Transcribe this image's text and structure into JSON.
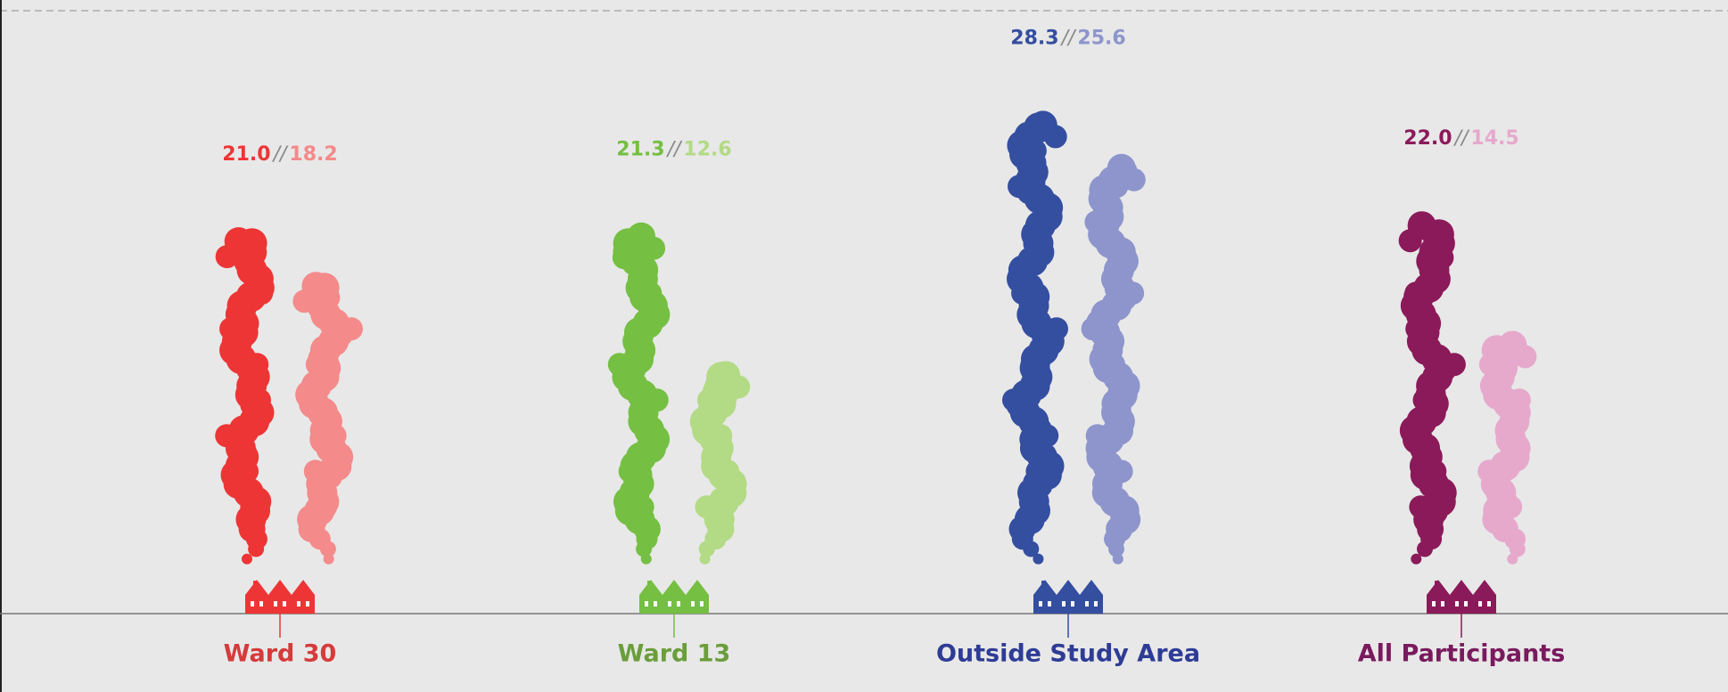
{
  "chart_data": {
    "type": "bar",
    "categories": [
      "Ward 30",
      "Ward 13",
      "Outside Study Area",
      "All Participants"
    ],
    "category_colors": [
      "#d63a3a",
      "#6a9e3a",
      "#2e3c96",
      "#7a1a5e"
    ],
    "separator": "//",
    "series": [
      {
        "colors": [
          "#ee3535",
          "#75bf43",
          "#344ea0",
          "#8b1a5a"
        ],
        "values": [
          21.0,
          21.3,
          28.3,
          22.0
        ],
        "value_labels": [
          "21.0",
          "21.3",
          "28.3",
          "22.0"
        ]
      },
      {
        "colors": [
          "#f48a8a",
          "#b3da84",
          "#8d95cc",
          "#e6a9cc"
        ],
        "values": [
          18.2,
          12.6,
          25.6,
          14.5
        ],
        "value_labels": [
          "18.2",
          "12.6",
          "25.6",
          "14.5"
        ]
      }
    ]
  }
}
